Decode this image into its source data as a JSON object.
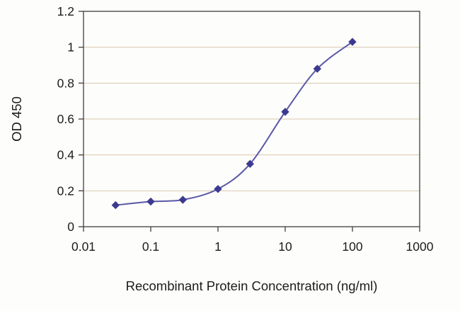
{
  "chart_data": {
    "type": "line",
    "x": [
      0.03,
      0.1,
      0.3,
      1,
      3,
      10,
      30,
      100
    ],
    "y": [
      0.12,
      0.14,
      0.15,
      0.21,
      0.35,
      0.64,
      0.88,
      1.03
    ],
    "title": "",
    "xlabel": "Recombinant Protein Concentration (ng/ml)",
    "ylabel": "OD 450",
    "x_scale": "log",
    "xlim": [
      0.01,
      1000
    ],
    "ylim": [
      0,
      1.2
    ],
    "x_tick_labels": [
      "0.01",
      "0.1",
      "1",
      "10",
      "100",
      "1000"
    ],
    "x_tick_values": [
      0.01,
      0.1,
      1,
      10,
      100,
      1000
    ],
    "y_tick_labels": [
      "0",
      "0.2",
      "0.4",
      "0.6",
      "0.8",
      "1",
      "1.2"
    ],
    "y_tick_values": [
      0,
      0.2,
      0.4,
      0.6,
      0.8,
      1,
      1.2
    ],
    "grid": "horizontal",
    "legend": "none",
    "marker": "diamond",
    "colors": {
      "line": "#5a58a8",
      "marker": "#3c3a90",
      "grid": "#d9c8ae",
      "axis": "#4a4a4a",
      "text": "#1c1c1c",
      "background": "#fdfdfb"
    }
  }
}
